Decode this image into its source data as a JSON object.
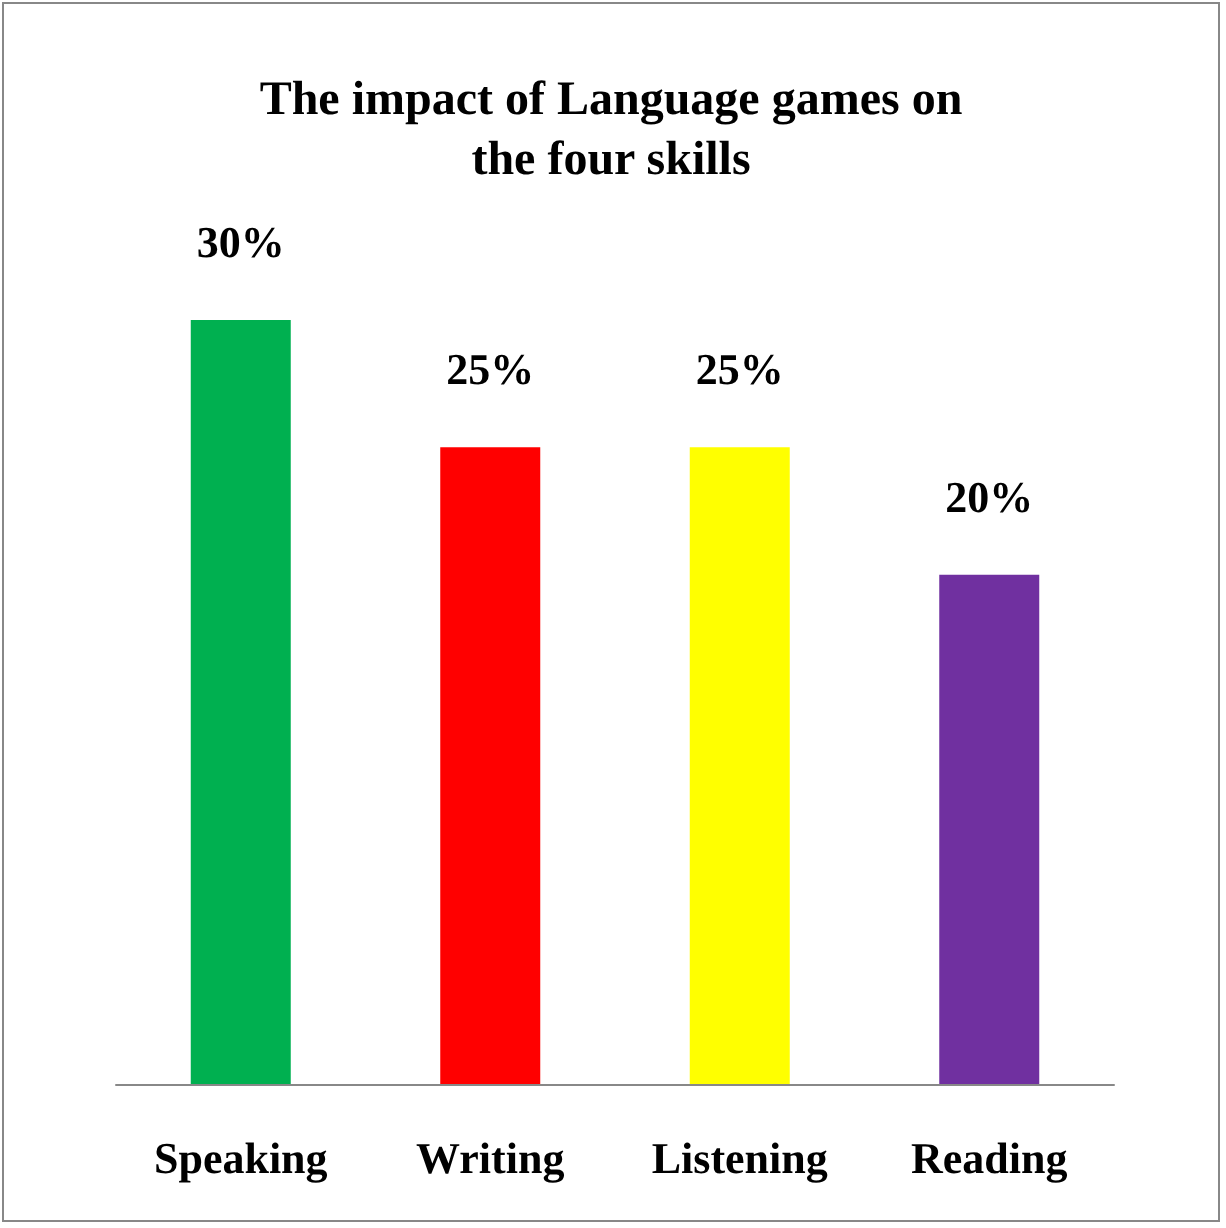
{
  "chart_data": {
    "type": "bar",
    "title": "The impact of Language games on\nthe four skills",
    "categories": [
      "Speaking",
      "Writing",
      "Listening",
      "Reading"
    ],
    "values": [
      30,
      25,
      25,
      20
    ],
    "colors": [
      "#00b050",
      "#ff0000",
      "#ffff00",
      "#7030a0"
    ],
    "value_labels": [
      "30%",
      "25%",
      "25%",
      "20%"
    ]
  }
}
